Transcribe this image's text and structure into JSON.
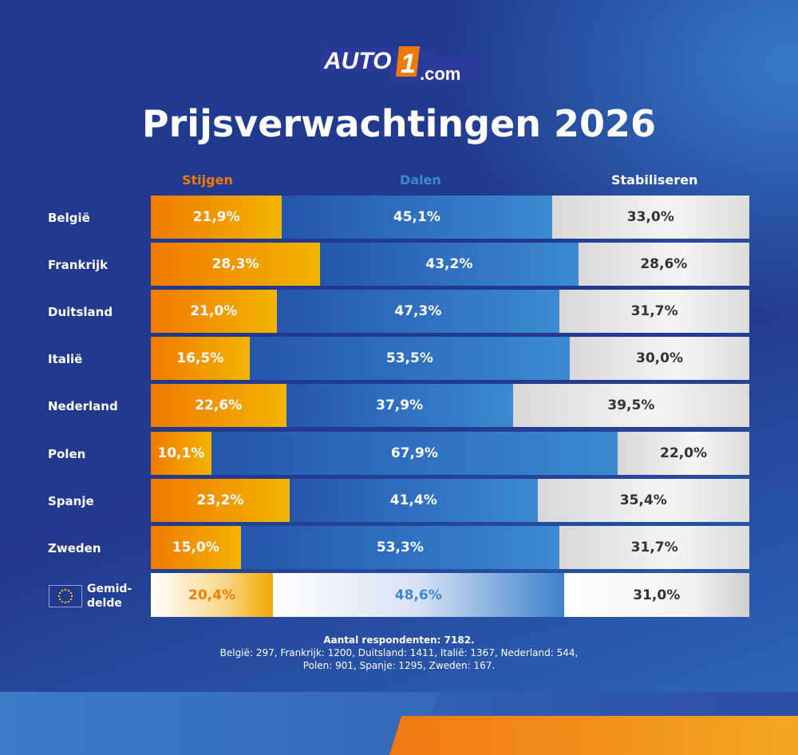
{
  "brand": {
    "logo_text": "AUTO1.com"
  },
  "chart_data": {
    "type": "bar",
    "stacked": true,
    "orientation": "horizontal",
    "title": "Prijsverwachtingen 2026",
    "categories": [
      "België",
      "Frankrijk",
      "Duitsland",
      "Italië",
      "Nederland",
      "Polen",
      "Spanje",
      "Zweden"
    ],
    "series": [
      {
        "name": "Stijgen",
        "color": "#f07a00",
        "values": [
          21.9,
          28.3,
          21.0,
          16.5,
          22.6,
          10.1,
          23.2,
          15.0
        ],
        "labels": [
          "21,9%",
          "28,3%",
          "21,0%",
          "16,5%",
          "22,6%",
          "10,1%",
          "23,2%",
          "15,0%"
        ]
      },
      {
        "name": "Dalen",
        "color": "#3b8ad2",
        "values": [
          45.1,
          43.2,
          47.3,
          53.5,
          37.9,
          67.9,
          41.4,
          53.3
        ],
        "labels": [
          "45,1%",
          "43,2%",
          "47,3%",
          "53,5%",
          "37,9%",
          "67,9%",
          "41,4%",
          "53,3%"
        ]
      },
      {
        "name": "Stabiliseren",
        "color": "#e6e6e6",
        "values": [
          33.0,
          28.6,
          31.7,
          30.0,
          39.5,
          22.0,
          35.4,
          31.7
        ],
        "labels": [
          "33,0%",
          "28,6%",
          "31,7%",
          "30,0%",
          "39,5%",
          "22,0%",
          "35,4%",
          "31,7%"
        ]
      }
    ],
    "average": {
      "label_line1": "Gemid-",
      "label_line2": "delde",
      "values": [
        20.4,
        48.6,
        31.0
      ],
      "labels": [
        "20,4%",
        "48,6%",
        "31,0%"
      ]
    },
    "xlim": [
      0,
      100
    ]
  },
  "footer": {
    "line1": "Aantal respondenten: 7182.",
    "line2": "België: 297, Frankrijk: 1200, Duitsland: 1411, Italië: 1367, Nederland: 544,",
    "line3": "Polen: 901, Spanje: 1295, Zweden: 167."
  }
}
